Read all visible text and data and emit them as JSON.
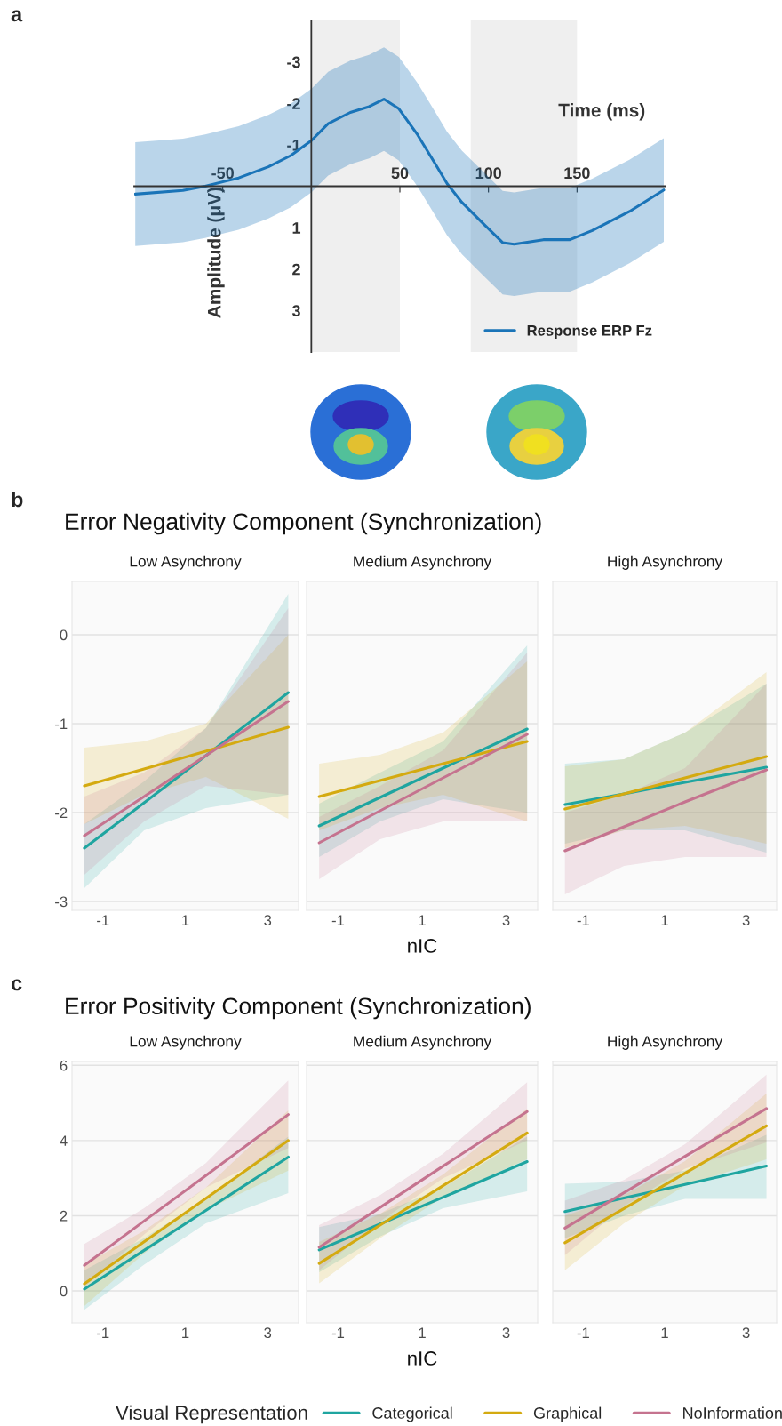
{
  "chart_data": [
    {
      "type": "line",
      "xlabel": "Time (ms)",
      "ylabel": "Amplitude (μV)",
      "annotations": [
        "a"
      ],
      "xlim": [
        -100,
        200
      ],
      "ylim": [
        4,
        -4
      ],
      "xticks": [
        -50,
        50,
        100,
        150
      ],
      "yticks": [
        -3,
        -2,
        -1,
        1,
        2,
        3
      ],
      "legend": "lower right",
      "grid": false,
      "bands": [
        {
          "axis": "x",
          "from": 0,
          "to": 50,
          "color": "#efefef"
        },
        {
          "axis": "x",
          "from": 90,
          "to": 150,
          "color": "#efefef"
        }
      ],
      "x": [
        -99.4,
        -72.5,
        -59.9,
        -41,
        -24.2,
        -11.6,
        0,
        9.5,
        22,
        32.6,
        41,
        49.4,
        60,
        70.4,
        76.7,
        85,
        97.7,
        108,
        114.5,
        131,
        146,
        158.6,
        179.6,
        199
      ],
      "series": [
        {
          "name": "Response ERP Fz",
          "color": "#1a74b8",
          "values": [
            0.19,
            0.1,
            0,
            -0.2,
            -0.47,
            -0.74,
            -1.1,
            -1.51,
            -1.78,
            -1.92,
            -2.1,
            -1.87,
            -1.24,
            -0.51,
            -0.06,
            0.39,
            0.93,
            1.36,
            1.4,
            1.29,
            1.29,
            1.07,
            0.61,
            0.09
          ],
          "lower": [
            -1.06,
            -1.15,
            -1.25,
            -1.45,
            -1.72,
            -1.99,
            -2.35,
            -2.76,
            -3.03,
            -3.17,
            -3.35,
            -3.12,
            -2.49,
            -1.76,
            -1.31,
            -0.86,
            -0.32,
            0.11,
            0.15,
            0.04,
            0.04,
            -0.18,
            -0.64,
            -1.16
          ],
          "upper": [
            1.44,
            1.35,
            1.25,
            1.05,
            0.78,
            0.51,
            0.15,
            -0.26,
            -0.53,
            -0.67,
            -0.85,
            -0.62,
            0.01,
            0.74,
            1.19,
            1.64,
            2.18,
            2.61,
            2.65,
            2.54,
            2.54,
            2.32,
            1.86,
            1.34
          ]
        }
      ]
    },
    {
      "type": "line",
      "title": "Low Asynchrony",
      "annotations": [
        "b",
        "Error Negativity Component (Synchronization)"
      ],
      "xlim": [
        -1.75,
        3.75
      ],
      "ylim": [
        -3.1,
        0.6
      ],
      "xticks": [
        -1,
        1,
        3
      ],
      "yticks": [
        -3,
        -2,
        -1,
        0
      ],
      "grid": "y",
      "x": [
        -1.45,
        0,
        1.5,
        3.5
      ],
      "series": [
        {
          "color": "#1fa5a0",
          "values": [
            -2.4,
            -1.89,
            -1.36,
            -0.65
          ],
          "upper": [
            -2.13,
            -1.65,
            -1.05,
            0.46
          ],
          "lower": [
            -2.85,
            -2.2,
            -1.95,
            -1.8
          ]
        },
        {
          "color": "#d4aa10",
          "values": [
            -1.7,
            -1.51,
            -1.31,
            -1.04
          ],
          "upper": [
            -1.27,
            -1.2,
            -1.0,
            0.0
          ],
          "lower": [
            -2.13,
            -1.8,
            -1.6,
            -2.07
          ]
        },
        {
          "color": "#c5738f",
          "values": [
            -2.26,
            -1.82,
            -1.36,
            -0.75
          ],
          "upper": [
            -1.82,
            -1.55,
            -1.05,
            0.3
          ],
          "lower": [
            -2.7,
            -2.1,
            -1.7,
            -1.8
          ]
        }
      ]
    },
    {
      "type": "line",
      "title": "Medium Asynchrony",
      "xlabel": "nIC",
      "tick_labels": "x",
      "xlim": [
        -1.75,
        3.75
      ],
      "ylim": [
        -3.1,
        0.6
      ],
      "xticks": [
        -1,
        1,
        3
      ],
      "yticks": [
        -3,
        -2,
        -1,
        0
      ],
      "grid": "y",
      "x": [
        -1.45,
        0,
        1.5,
        3.5
      ],
      "series": [
        {
          "color": "#1fa5a0",
          "values": [
            -2.15,
            -1.83,
            -1.5,
            -1.06
          ],
          "upper": [
            -1.9,
            -1.55,
            -1.2,
            -0.12
          ],
          "lower": [
            -2.5,
            -2.1,
            -1.85,
            -2.0
          ]
        },
        {
          "color": "#d4aa10",
          "values": [
            -1.82,
            -1.64,
            -1.45,
            -1.2
          ],
          "upper": [
            -1.45,
            -1.35,
            -1.1,
            -0.3
          ],
          "lower": [
            -2.2,
            -1.95,
            -1.8,
            -2.1
          ]
        },
        {
          "color": "#c5738f",
          "values": [
            -2.34,
            -1.98,
            -1.61,
            -1.12
          ],
          "upper": [
            -2.05,
            -1.7,
            -1.3,
            -0.2
          ],
          "lower": [
            -2.75,
            -2.3,
            -2.1,
            -2.1
          ]
        }
      ]
    },
    {
      "type": "line",
      "title": "High Asynchrony",
      "tick_labels": "x",
      "xlim": [
        -1.75,
        3.75
      ],
      "ylim": [
        -3.1,
        0.6
      ],
      "xticks": [
        -1,
        1,
        3
      ],
      "yticks": [
        -3,
        -2,
        -1,
        0
      ],
      "grid": "y",
      "x": [
        -1.45,
        0,
        1.5,
        3.5
      ],
      "series": [
        {
          "color": "#1fa5a0",
          "values": [
            -1.91,
            -1.79,
            -1.66,
            -1.49
          ],
          "upper": [
            -1.45,
            -1.4,
            -1.1,
            -0.55
          ],
          "lower": [
            -2.35,
            -2.2,
            -2.2,
            -2.45
          ]
        },
        {
          "color": "#d4aa10",
          "values": [
            -1.96,
            -1.79,
            -1.61,
            -1.37
          ],
          "upper": [
            -1.48,
            -1.4,
            -1.1,
            -0.42
          ],
          "lower": [
            -2.4,
            -2.2,
            -2.15,
            -2.35
          ]
        },
        {
          "color": "#c5738f",
          "values": [
            -2.43,
            -2.16,
            -1.88,
            -1.52
          ],
          "upper": [
            -2.0,
            -1.8,
            -1.5,
            -0.55
          ],
          "lower": [
            -2.92,
            -2.6,
            -2.5,
            -2.5
          ]
        }
      ]
    },
    {
      "type": "line",
      "title": "Low Asynchrony",
      "annotations": [
        "c",
        "Error Positivity Component (Synchronization)"
      ],
      "xlim": [
        -1.75,
        3.75
      ],
      "ylim": [
        -0.85,
        6.1
      ],
      "xticks": [
        -1,
        1,
        3
      ],
      "yticks": [
        0,
        2,
        4,
        6
      ],
      "grid": "y",
      "x": [
        -1.45,
        0,
        1.5,
        3.5
      ],
      "series": [
        {
          "color": "#1fa5a0",
          "values": [
            0.05,
            1.08,
            2.14,
            3.56
          ],
          "upper": [
            0.55,
            1.4,
            2.45,
            4.1
          ],
          "lower": [
            -0.5,
            0.7,
            1.8,
            2.6
          ]
        },
        {
          "color": "#d4aa10",
          "values": [
            0.19,
            1.31,
            2.46,
            4.0
          ],
          "upper": [
            0.7,
            1.6,
            2.75,
            4.8
          ],
          "lower": [
            -0.4,
            1.0,
            2.15,
            3.2
          ]
        },
        {
          "color": "#c5738f",
          "values": [
            0.68,
            1.86,
            3.07,
            4.69
          ],
          "upper": [
            1.25,
            2.2,
            3.4,
            5.6
          ],
          "lower": [
            0.1,
            1.5,
            2.75,
            3.8
          ]
        }
      ]
    },
    {
      "type": "line",
      "title": "Medium Asynchrony",
      "xlabel": "nIC",
      "tick_labels": "x",
      "xlim": [
        -1.75,
        3.75
      ],
      "ylim": [
        -0.85,
        6.1
      ],
      "xticks": [
        -1,
        1,
        3
      ],
      "yticks": [
        0,
        2,
        4,
        6
      ],
      "grid": "y",
      "x": [
        -1.45,
        0,
        1.5,
        3.5
      ],
      "series": [
        {
          "color": "#1fa5a0",
          "values": [
            1.09,
            1.78,
            2.49,
            3.44
          ],
          "upper": [
            1.7,
            2.05,
            2.75,
            4.1
          ],
          "lower": [
            0.5,
            1.45,
            2.2,
            2.65
          ]
        },
        {
          "color": "#d4aa10",
          "values": [
            0.73,
            1.75,
            2.8,
            4.2
          ],
          "upper": [
            1.3,
            2.05,
            3.1,
            4.85
          ],
          "lower": [
            0.2,
            1.4,
            2.5,
            3.5
          ]
        },
        {
          "color": "#c5738f",
          "values": [
            1.16,
            2.22,
            3.32,
            4.77
          ],
          "upper": [
            1.75,
            2.55,
            3.65,
            5.55
          ],
          "lower": [
            0.55,
            1.85,
            3.0,
            4.0
          ]
        }
      ]
    },
    {
      "type": "line",
      "title": "High Asynchrony",
      "tick_labels": "x",
      "xlim": [
        -1.75,
        3.75
      ],
      "ylim": [
        -0.85,
        6.1
      ],
      "xticks": [
        -1,
        1,
        3
      ],
      "yticks": [
        0,
        2,
        4,
        6
      ],
      "grid": "y",
      "legend": "bottom",
      "legend_title": "Visual Representation",
      "x": [
        -1.45,
        0,
        1.5,
        3.5
      ],
      "series": [
        {
          "name": "Categorical",
          "color": "#1fa5a0",
          "values": [
            2.11,
            2.47,
            2.83,
            3.32
          ],
          "upper": [
            2.85,
            2.9,
            3.2,
            4.15
          ],
          "lower": [
            1.4,
            2.0,
            2.45,
            2.45
          ]
        },
        {
          "name": "Graphical",
          "color": "#d4aa10",
          "values": [
            1.28,
            2.19,
            3.13,
            4.39
          ],
          "upper": [
            2.0,
            2.55,
            3.45,
            5.25
          ],
          "lower": [
            0.55,
            1.8,
            2.8,
            3.5
          ]
        },
        {
          "name": "NoInformation",
          "color": "#c5738f",
          "values": [
            1.67,
            2.61,
            3.58,
            4.85
          ],
          "upper": [
            2.4,
            2.95,
            3.9,
            5.75
          ],
          "lower": [
            0.95,
            2.25,
            3.25,
            3.95
          ]
        }
      ]
    }
  ]
}
